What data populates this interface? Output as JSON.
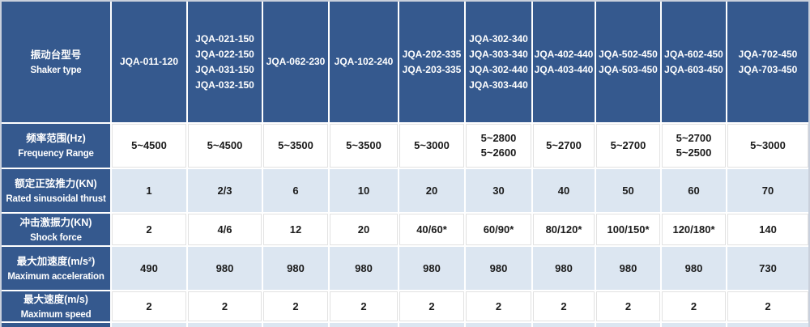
{
  "table": {
    "header": {
      "label_zh": "振动台型号",
      "label_en": "Shaker type",
      "columns": [
        [
          "JQA-011-120"
        ],
        [
          "JQA-021-150",
          "JQA-022-150",
          "JQA-031-150",
          "JQA-032-150"
        ],
        [
          "JQA-062-230"
        ],
        [
          "JQA-102-240"
        ],
        [
          "JQA-202-335",
          "JQA-203-335"
        ],
        [
          "JQA-302-340",
          "JQA-303-340",
          "JQA-302-440",
          "JQA-303-440"
        ],
        [
          "JQA-402-440",
          "JQA-403-440"
        ],
        [
          "JQA-502-450",
          "JQA-503-450"
        ],
        [
          "JQA-602-450",
          "JQA-603-450"
        ],
        [
          "JQA-702-450",
          "JQA-703-450"
        ]
      ]
    },
    "rows": [
      {
        "key": "frequency-range",
        "label_zh": "频率范围(Hz)",
        "label_en": "Frequency Range",
        "shade": "white",
        "values": [
          [
            "5~4500"
          ],
          [
            "5~4500"
          ],
          [
            "5~3500"
          ],
          [
            "5~3500"
          ],
          [
            "5~3000"
          ],
          [
            "5~2800",
            "5~2600"
          ],
          [
            "5~2700"
          ],
          [
            "5~2700"
          ],
          [
            "5~2700",
            "5~2500"
          ],
          [
            "5~3000"
          ]
        ]
      },
      {
        "key": "rated-sinusoidal-thrust",
        "label_zh": "额定正弦推力(KN)",
        "label_en": "Rated sinusoidal thrust",
        "shade": "blue",
        "values": [
          [
            "1"
          ],
          [
            "2/3"
          ],
          [
            "6"
          ],
          [
            "10"
          ],
          [
            "20"
          ],
          [
            "30"
          ],
          [
            "40"
          ],
          [
            "50"
          ],
          [
            "60"
          ],
          [
            "70"
          ]
        ]
      },
      {
        "key": "shock-force",
        "label_zh": "冲击激振力(KN)",
        "label_en": "Shock force",
        "shade": "white",
        "values": [
          [
            "2"
          ],
          [
            "4/6"
          ],
          [
            "12"
          ],
          [
            "20"
          ],
          [
            "40/60*"
          ],
          [
            "60/90*"
          ],
          [
            "80/120*"
          ],
          [
            "100/150*"
          ],
          [
            "120/180*"
          ],
          [
            "140"
          ]
        ]
      },
      {
        "key": "maximum-acceleration",
        "label_zh": "最大加速度(m/s²)",
        "label_en": "Maximum acceleration",
        "shade": "blue",
        "values": [
          [
            "490"
          ],
          [
            "980"
          ],
          [
            "980"
          ],
          [
            "980"
          ],
          [
            "980"
          ],
          [
            "980"
          ],
          [
            "980"
          ],
          [
            "980"
          ],
          [
            "980"
          ],
          [
            "730"
          ]
        ]
      },
      {
        "key": "maximum-speed",
        "label_zh": "最大速度(m/s)",
        "label_en": "Maximum speed",
        "shade": "white",
        "values": [
          [
            "2"
          ],
          [
            "2"
          ],
          [
            "2"
          ],
          [
            "2"
          ],
          [
            "2"
          ],
          [
            "2"
          ],
          [
            "2"
          ],
          [
            "2"
          ],
          [
            "2"
          ],
          [
            "2"
          ]
        ]
      }
    ],
    "partial_row_shade": "blue",
    "colors": {
      "header_bg": "#35598e",
      "header_text": "#ffffff",
      "row_alt_bg": "#dce6f1",
      "row_bg": "#ffffff",
      "value_text": "#1b1b1b",
      "outer_border": "#c9d0dc",
      "cell_gap": "#ffffff"
    }
  }
}
